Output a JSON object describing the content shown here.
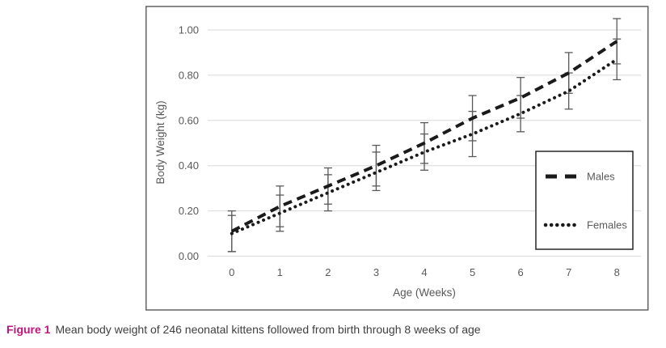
{
  "figure": {
    "label": "Figure 1",
    "label_color": "#c0147c",
    "caption": "Mean body weight of 246 neonatal kittens followed from birth through 8 weeks of age"
  },
  "chart_data": {
    "type": "line",
    "title": "",
    "xlabel": "Age (Weeks)",
    "ylabel": "Body Weight (kg)",
    "x": [
      0,
      1,
      2,
      3,
      4,
      5,
      6,
      7,
      8
    ],
    "x_tick_labels": [
      "0",
      "1",
      "2",
      "3",
      "4",
      "5",
      "6",
      "7",
      "8"
    ],
    "y_tick_labels": [
      "0.00",
      "0.20",
      "0.40",
      "0.60",
      "0.80",
      "1.00"
    ],
    "y_ticks": [
      0.0,
      0.2,
      0.4,
      0.6,
      0.8,
      1.0
    ],
    "ylim": [
      0.0,
      1.0
    ],
    "grid": true,
    "legend_position": "inside-right",
    "line_color": "#1a1a1a",
    "gridline_color": "#d9d9d9",
    "error_bar_color": "#595959",
    "series": [
      {
        "name": "Males",
        "style": "dashed",
        "values": [
          0.11,
          0.22,
          0.31,
          0.4,
          0.5,
          0.61,
          0.7,
          0.81,
          0.95
        ],
        "error_low": [
          0.02,
          0.13,
          0.23,
          0.31,
          0.41,
          0.51,
          0.61,
          0.72,
          0.85
        ],
        "error_high": [
          0.2,
          0.31,
          0.39,
          0.49,
          0.59,
          0.71,
          0.79,
          0.9,
          1.05
        ]
      },
      {
        "name": "Females",
        "style": "dotted",
        "values": [
          0.1,
          0.19,
          0.28,
          0.37,
          0.46,
          0.54,
          0.63,
          0.73,
          0.87
        ],
        "error_low": [
          0.02,
          0.11,
          0.2,
          0.29,
          0.38,
          0.44,
          0.55,
          0.65,
          0.78
        ],
        "error_high": [
          0.18,
          0.27,
          0.36,
          0.46,
          0.54,
          0.64,
          0.71,
          0.81,
          0.96
        ]
      }
    ]
  }
}
